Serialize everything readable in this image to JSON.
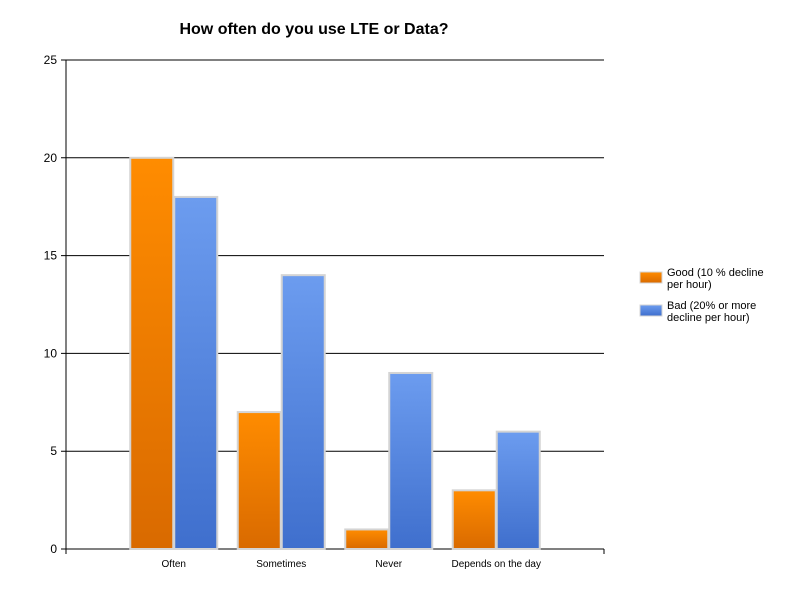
{
  "chart_data": {
    "type": "bar",
    "title": "How often do you use LTE or Data?",
    "xlabel": "",
    "ylabel": "",
    "categories": [
      "Often",
      "Sometimes",
      "Never",
      "Depends on the day"
    ],
    "series": [
      {
        "name": "Good (10 % decline per hour)",
        "values": [
          20,
          7,
          1,
          3
        ],
        "color_top": "#ff8c00",
        "color_bottom": "#d96a00"
      },
      {
        "name": "Bad (20% or more decline per hour)",
        "values": [
          18,
          14,
          9,
          6
        ],
        "color_top": "#6c9cef",
        "color_bottom": "#3f6fcd"
      }
    ],
    "ylim": [
      0,
      25
    ],
    "yticks": [
      0,
      5,
      10,
      15,
      20,
      25
    ],
    "grid": true,
    "legend_position": "right"
  }
}
